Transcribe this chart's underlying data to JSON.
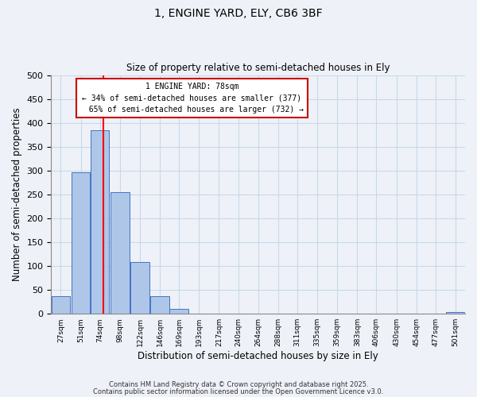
{
  "title": "1, ENGINE YARD, ELY, CB6 3BF",
  "subtitle": "Size of property relative to semi-detached houses in Ely",
  "xlabel": "Distribution of semi-detached houses by size in Ely",
  "ylabel": "Number of semi-detached properties",
  "bar_labels": [
    "27sqm",
    "51sqm",
    "74sqm",
    "98sqm",
    "122sqm",
    "146sqm",
    "169sqm",
    "193sqm",
    "217sqm",
    "240sqm",
    "264sqm",
    "288sqm",
    "311sqm",
    "335sqm",
    "359sqm",
    "383sqm",
    "406sqm",
    "430sqm",
    "454sqm",
    "477sqm",
    "501sqm"
  ],
  "bar_values": [
    37,
    296,
    385,
    255,
    108,
    37,
    10,
    0,
    0,
    0,
    0,
    0,
    0,
    0,
    0,
    0,
    0,
    0,
    0,
    0,
    3
  ],
  "bar_color": "#aec6e8",
  "bar_edge_color": "#4472c4",
  "property_value": 78,
  "property_label": "1 ENGINE YARD: 78sqm",
  "smaller_pct": 34,
  "smaller_count": 377,
  "larger_pct": 65,
  "larger_count": 732,
  "bin_centers": [
    27,
    51,
    74,
    98,
    122,
    146,
    169,
    193,
    217,
    240,
    264,
    288,
    311,
    335,
    359,
    383,
    406,
    430,
    454,
    477,
    501
  ],
  "bin_width": 23,
  "ylim": [
    0,
    500
  ],
  "yticks": [
    0,
    50,
    100,
    150,
    200,
    250,
    300,
    350,
    400,
    450,
    500
  ],
  "grid_color": "#c8d8ea",
  "background_color": "#eef2f8",
  "footnote1": "Contains HM Land Registry data © Crown copyright and database right 2025.",
  "footnote2": "Contains public sector information licensed under the Open Government Licence v3.0."
}
